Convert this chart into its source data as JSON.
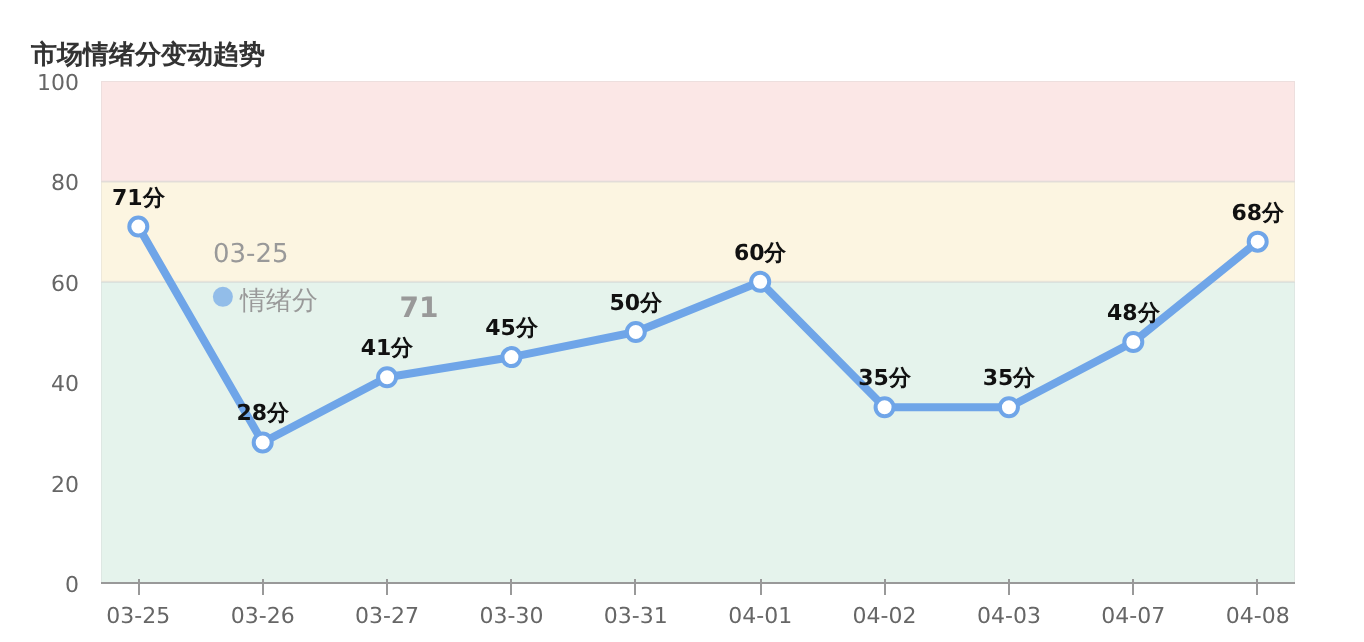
{
  "chart_data": {
    "type": "line",
    "title": "市场情绪分变动趋势",
    "categories": [
      "03-25",
      "03-26",
      "03-27",
      "03-30",
      "03-31",
      "04-01",
      "04-02",
      "04-03",
      "04-07",
      "04-08"
    ],
    "series": [
      {
        "name": "情绪分",
        "color": "#6fa5e8",
        "values": [
          71,
          28,
          41,
          45,
          50,
          60,
          35,
          35,
          48,
          68
        ],
        "value_labels": [
          "71分",
          "28分",
          "41分",
          "45分",
          "50分",
          "60分",
          "35分",
          "35分",
          "48分",
          "68分"
        ]
      }
    ],
    "ylim": [
      0,
      100
    ],
    "yticks": [
      0,
      20,
      40,
      60,
      80,
      100
    ],
    "grid": "y",
    "marker": "circle",
    "line_style": "solid",
    "legend": "top left",
    "annotations": [
      "03-25",
      "71"
    ],
    "bands": [
      {
        "axis": "y",
        "from": 0,
        "to": 60,
        "color": "#e5f3ec"
      },
      {
        "axis": "y",
        "from": 60,
        "to": 80,
        "color": "#fcf5e1"
      },
      {
        "axis": "y",
        "from": 80,
        "to": 100,
        "color": "#fbe7e6"
      }
    ]
  }
}
